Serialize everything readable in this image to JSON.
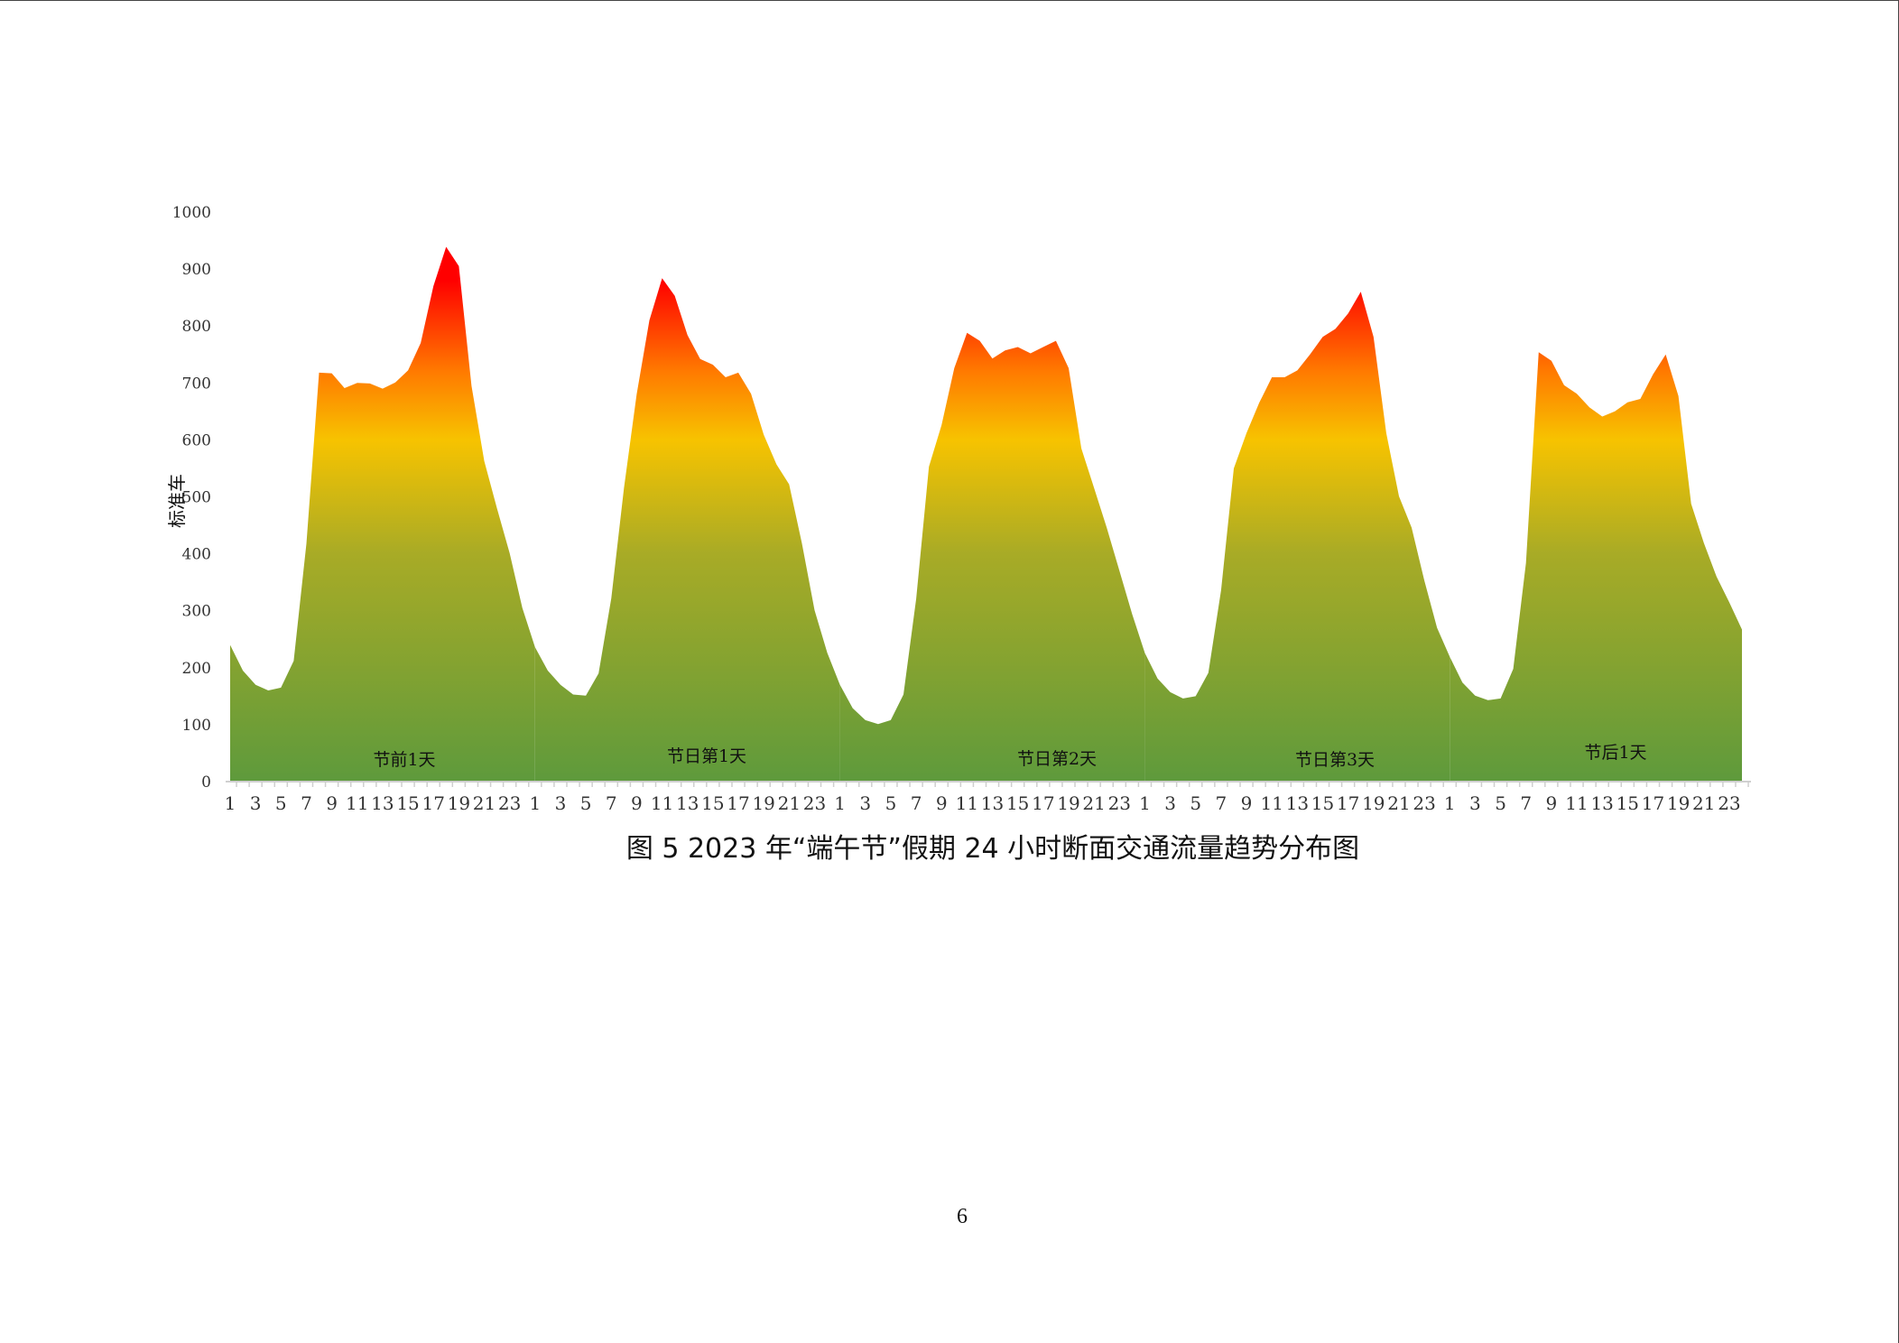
{
  "chart_data": {
    "type": "area",
    "title": "图 5  2023 年“端午节”假期 24 小时断面交通流量趋势分布图",
    "xlabel": "",
    "ylabel": "标准车",
    "ylim": [
      0,
      1000
    ],
    "yticks": [
      0,
      100,
      200,
      300,
      400,
      500,
      600,
      700,
      800,
      900,
      1000
    ],
    "xtick_labels": [
      "1",
      "3",
      "5",
      "7",
      "9",
      "11",
      "13",
      "15",
      "17",
      "19",
      "21",
      "23"
    ],
    "hours_per_day": 24,
    "grid": false,
    "legend": "none",
    "day_labels": [
      "节前1天",
      "节日第1天",
      "节日第2天",
      "节日第3天",
      "节后1天"
    ],
    "series": [
      {
        "name": "节前1天",
        "values": [
          240,
          195,
          170,
          160,
          165,
          212,
          418,
          718,
          717,
          691,
          700,
          699,
          690,
          701,
          722,
          770,
          870,
          939,
          905,
          695,
          563,
          480,
          401,
          305
        ]
      },
      {
        "name": "节日第1天",
        "values": [
          236,
          195,
          170,
          153,
          151,
          190,
          322,
          515,
          680,
          810,
          884,
          853,
          784,
          742,
          732,
          710,
          718,
          681,
          609,
          557,
          522,
          419,
          301,
          226
        ]
      },
      {
        "name": "节日第2天",
        "values": [
          170,
          129,
          108,
          101,
          108,
          153,
          321,
          553,
          626,
          726,
          788,
          774,
          743,
          757,
          763,
          752,
          763,
          774,
          726,
          585,
          516,
          446,
          370,
          294
        ]
      },
      {
        "name": "节日第3天",
        "values": [
          226,
          181,
          157,
          146,
          150,
          191,
          336,
          550,
          612,
          665,
          710,
          710,
          722,
          750,
          781,
          795,
          822,
          860,
          781,
          612,
          501,
          446,
          353,
          270
        ]
      },
      {
        "name": "节后1天",
        "values": [
          219,
          174,
          151,
          143,
          146,
          198,
          384,
          754,
          739,
          696,
          681,
          657,
          641,
          650,
          666,
          672,
          715,
          750,
          677,
          488,
          419,
          360,
          315,
          267
        ]
      }
    ],
    "gradient_colors": {
      "low": "#5e9a3c",
      "mid": "#a8ab26",
      "yellow": "#f7c300",
      "orange": "#ff7a00",
      "high": "#ff0000"
    }
  },
  "caption": "图 5  2023 年“端午节”假期 24 小时断面交通流量趋势分布图",
  "page_number": "6"
}
